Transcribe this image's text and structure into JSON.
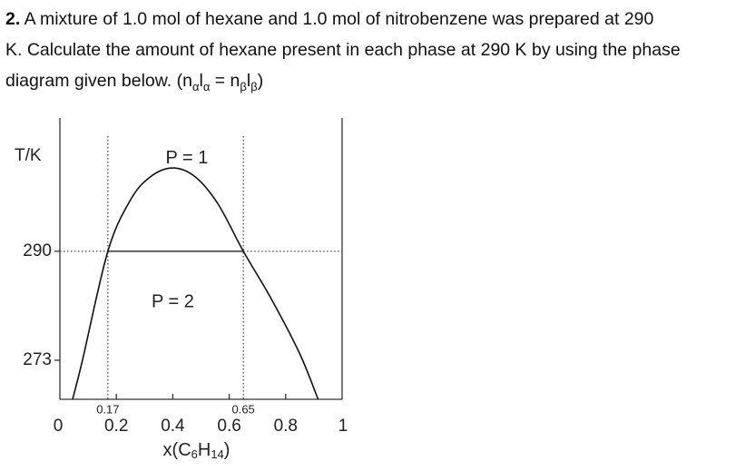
{
  "question": {
    "number": "2.",
    "lines": [
      [
        {
          "text": "A mixture of 1.0 mol of hexane and 1.0 mol of nitrobenzene was prepared at 290"
        }
      ],
      [
        {
          "text": "K. Calculate the amount of hexane present in each phase at 290 K by using the phase"
        }
      ],
      [
        {
          "text": "diagram given below. (n"
        },
        {
          "text": "α",
          "sub": true
        },
        {
          "text": "l"
        },
        {
          "text": "α",
          "sub": true
        },
        {
          "text": " = n"
        },
        {
          "text": "β",
          "sub": true
        },
        {
          "text": "l"
        },
        {
          "text": "β",
          "sub": true
        },
        {
          "text": ")"
        }
      ]
    ]
  },
  "chart_data": {
    "type": "line",
    "ylabel": "T/K",
    "xlabel": [
      {
        "text": "x(C"
      },
      {
        "text": "6",
        "sub": true
      },
      {
        "text": "H"
      },
      {
        "text": "14",
        "sub": true
      },
      {
        "text": ")"
      }
    ],
    "xlim": [
      0,
      1
    ],
    "xticks": [
      0,
      0.2,
      0.4,
      0.6,
      0.8,
      1
    ],
    "ylim": [
      266.9,
      310.8
    ],
    "yticks": [
      273,
      290
    ],
    "tie_line": {
      "x": [
        0.17,
        0.65
      ],
      "y": 290
    },
    "annotations": [
      {
        "text": "P = 1",
        "x": 0.45,
        "y": 304.5
      },
      {
        "text": "P = 2",
        "x": 0.4,
        "y": 282
      }
    ],
    "series": [
      {
        "color": "#111111",
        "x": [
          0.045,
          0.08,
          0.17,
          0.25,
          0.32,
          0.4,
          0.48,
          0.56,
          0.65,
          0.75,
          0.85,
          0.915
        ],
        "values": [
          266.9,
          273,
          290,
          298,
          301.6,
          303,
          301.6,
          297.4,
          290,
          282.5,
          274,
          266.9
        ]
      }
    ]
  }
}
